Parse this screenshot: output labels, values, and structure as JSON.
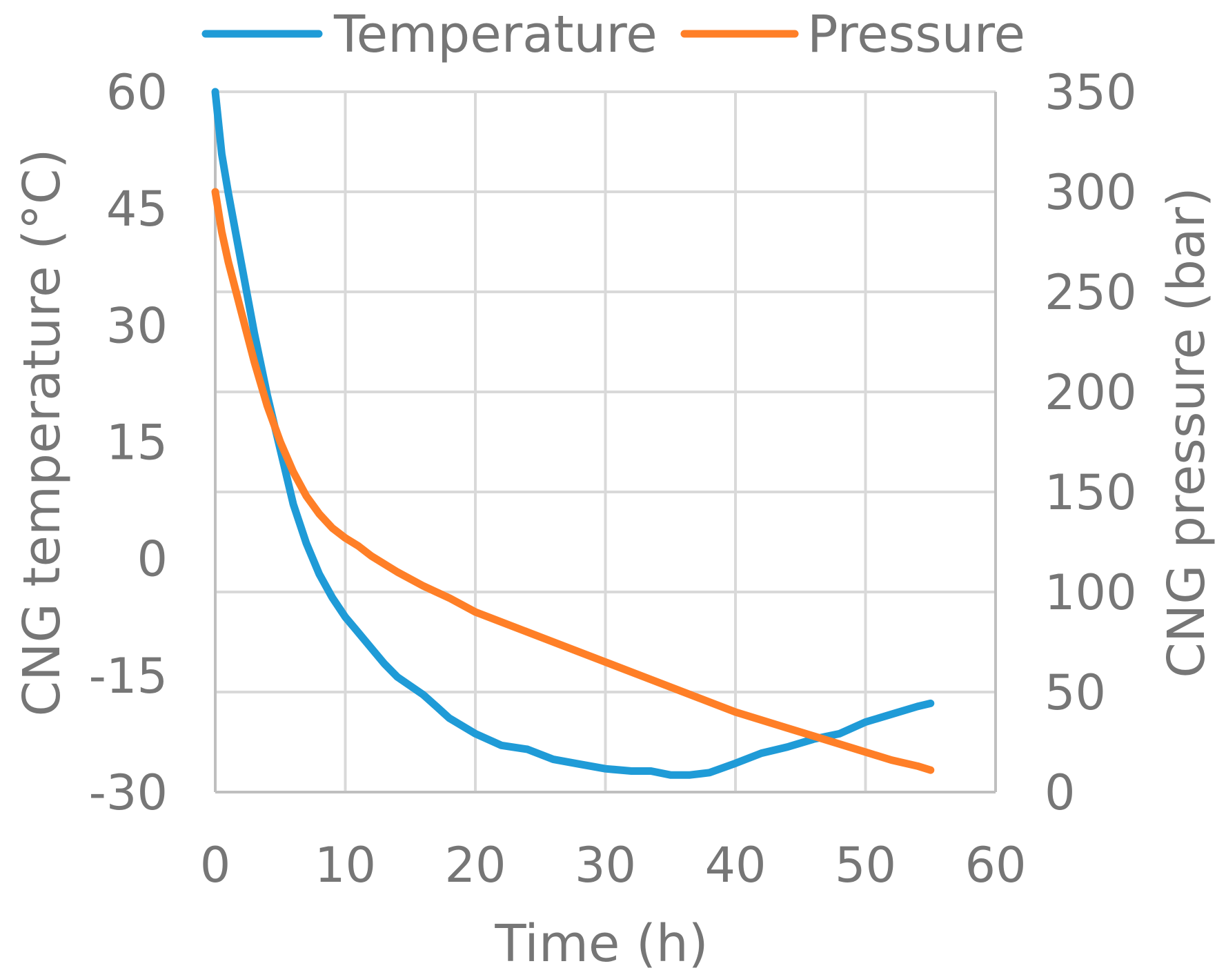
{
  "chart_data": {
    "type": "line",
    "title": "",
    "xlabel": "Time (h)",
    "ylabel": "CNG temperature (°C)",
    "y2label": "CNG pressure (bar)",
    "xlim": [
      0,
      60
    ],
    "ylim": [
      -30,
      60
    ],
    "y2lim": [
      0,
      350
    ],
    "x_ticks": [
      "0",
      "10",
      "20",
      "30",
      "40",
      "50",
      "60"
    ],
    "y_ticks": [
      "60",
      "45",
      "30",
      "15",
      "0",
      "-15",
      "-30"
    ],
    "y2_ticks": [
      "350",
      "300",
      "250",
      "200",
      "150",
      "100",
      "50",
      "0"
    ],
    "grid": true,
    "legend_position": "top",
    "series": [
      {
        "name": "Temperature",
        "axis": "left",
        "color": "#1f9bd7",
        "points": [
          [
            0,
            60
          ],
          [
            0.5,
            52
          ],
          [
            1,
            47
          ],
          [
            2,
            38
          ],
          [
            3,
            29
          ],
          [
            4,
            21
          ],
          [
            5,
            14
          ],
          [
            6,
            7
          ],
          [
            7,
            2
          ],
          [
            8,
            -2
          ],
          [
            9,
            -5
          ],
          [
            10,
            -7.5
          ],
          [
            11,
            -9.5
          ],
          [
            12,
            -11.5
          ],
          [
            13,
            -13.5
          ],
          [
            14,
            -15.2
          ],
          [
            16,
            -17.5
          ],
          [
            17,
            -19
          ],
          [
            18,
            -20.5
          ],
          [
            20,
            -22.5
          ],
          [
            22,
            -24
          ],
          [
            24,
            -24.5
          ],
          [
            26,
            -25.8
          ],
          [
            28,
            -26.4
          ],
          [
            30,
            -27
          ],
          [
            32,
            -27.3
          ],
          [
            33.5,
            -27.3
          ],
          [
            35,
            -27.8
          ],
          [
            36.5,
            -27.8
          ],
          [
            38,
            -27.5
          ],
          [
            40,
            -26.3
          ],
          [
            42,
            -25
          ],
          [
            44,
            -24.2
          ],
          [
            46,
            -23.2
          ],
          [
            48,
            -22.5
          ],
          [
            50,
            -21
          ],
          [
            52,
            -20
          ],
          [
            54,
            -19
          ],
          [
            55,
            -18.6
          ]
        ]
      },
      {
        "name": "Pressure",
        "axis": "right",
        "color": "#ff7f27",
        "points": [
          [
            0,
            300
          ],
          [
            0.5,
            280
          ],
          [
            1,
            265
          ],
          [
            2,
            240
          ],
          [
            3,
            215
          ],
          [
            4,
            193
          ],
          [
            5,
            175
          ],
          [
            6,
            160
          ],
          [
            7,
            148
          ],
          [
            8,
            139
          ],
          [
            9,
            132
          ],
          [
            10,
            127
          ],
          [
            11,
            123
          ],
          [
            12,
            118
          ],
          [
            14,
            110
          ],
          [
            16,
            103
          ],
          [
            18,
            97
          ],
          [
            20,
            90
          ],
          [
            22,
            85
          ],
          [
            24,
            80
          ],
          [
            26,
            75
          ],
          [
            28,
            70
          ],
          [
            30,
            65
          ],
          [
            32,
            60
          ],
          [
            34,
            55
          ],
          [
            36,
            50
          ],
          [
            38,
            45
          ],
          [
            40,
            40
          ],
          [
            42,
            36
          ],
          [
            44,
            32
          ],
          [
            46,
            28
          ],
          [
            48,
            24
          ],
          [
            50,
            20
          ],
          [
            52,
            16
          ],
          [
            54,
            13
          ],
          [
            55,
            11
          ]
        ]
      }
    ]
  }
}
